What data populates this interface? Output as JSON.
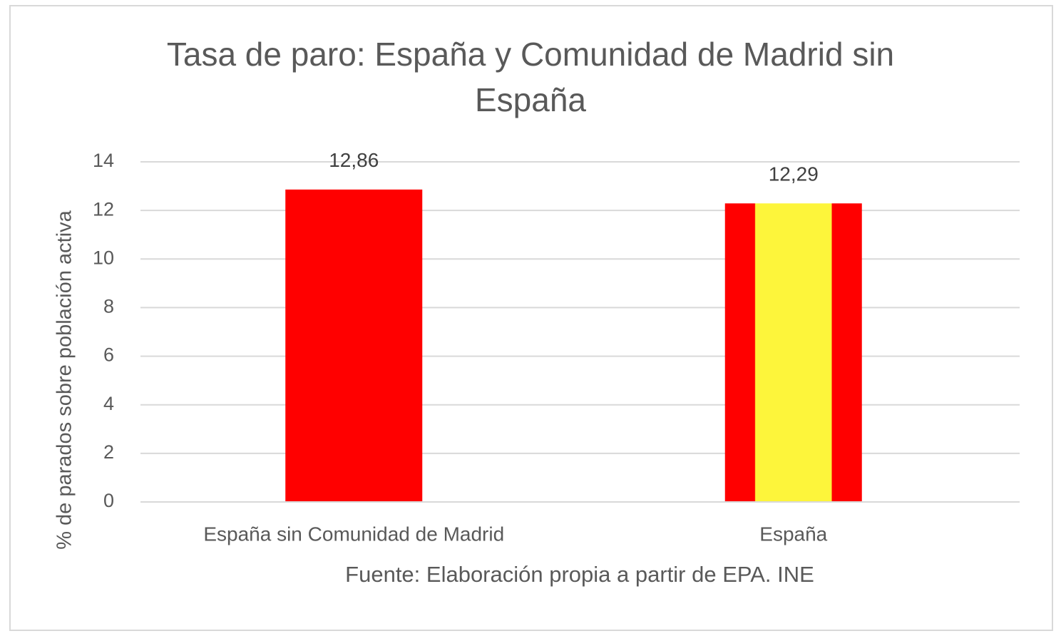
{
  "chart_data": {
    "type": "bar",
    "title": "Tasa de paro: España y Comunidad de Madrid sin España",
    "ylabel": "% de parados sobre población activa",
    "source": "Fuente: Elaboración propia a partir de EPA. INE",
    "categories": [
      "España sin Comunidad de Madrid",
      "España"
    ],
    "values": [
      12.86,
      12.29
    ],
    "value_labels": [
      "12,86",
      "12,29"
    ],
    "colors": [
      "#ff0000",
      "#ff0000"
    ],
    "stripe_colors": [
      null,
      "#fdf53b"
    ],
    "ylim": [
      0,
      14
    ],
    "yticks": [
      0,
      2,
      4,
      6,
      8,
      10,
      12,
      14
    ],
    "grid": true
  }
}
